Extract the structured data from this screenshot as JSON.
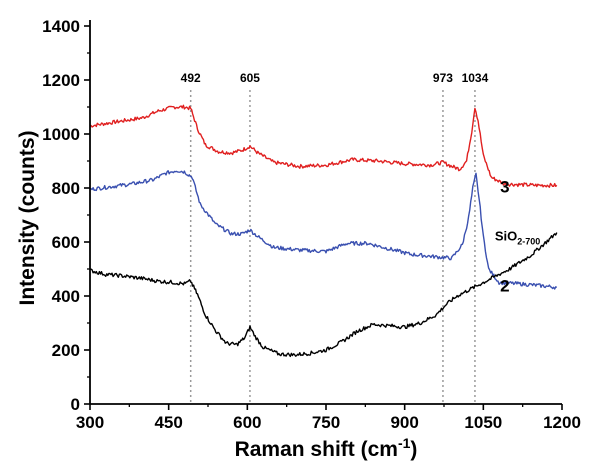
{
  "chart_data": {
    "type": "line",
    "xlabel": "Raman shift (cm",
    "xlabel_sup": "-1",
    "xlabel_suffix": ")",
    "ylabel": "Intensity (counts)",
    "xlim": [
      300,
      1200
    ],
    "ylim": [
      0,
      1400
    ],
    "x_ticks": [
      300,
      450,
      600,
      750,
      900,
      1050,
      1200
    ],
    "y_ticks": [
      0,
      200,
      400,
      600,
      800,
      1000,
      1200,
      1400
    ],
    "grid": false,
    "reference_lines": [
      {
        "x": 492,
        "label": "492"
      },
      {
        "x": 605,
        "label": "605"
      },
      {
        "x": 973,
        "label": "973"
      },
      {
        "x": 1034,
        "label": "1034"
      }
    ],
    "series": [
      {
        "name": "3",
        "color": "#e02020",
        "x": [
          300,
          350,
          400,
          430,
          460,
          480,
          492,
          505,
          520,
          545,
          570,
          590,
          605,
          620,
          650,
          700,
          750,
          800,
          850,
          900,
          950,
          973,
          990,
          1005,
          1018,
          1028,
          1034,
          1040,
          1050,
          1065,
          1090,
          1150,
          1190
        ],
        "y": [
          1030,
          1045,
          1060,
          1085,
          1100,
          1100,
          1095,
          1020,
          960,
          935,
          930,
          940,
          955,
          930,
          895,
          880,
          885,
          905,
          900,
          890,
          885,
          895,
          880,
          870,
          900,
          1010,
          1100,
          1050,
          920,
          840,
          815,
          810,
          810
        ]
      },
      {
        "name": "2",
        "color": "#3a50b0",
        "x": [
          300,
          340,
          380,
          420,
          445,
          465,
          480,
          495,
          510,
          540,
          570,
          590,
          605,
          620,
          650,
          700,
          750,
          790,
          830,
          870,
          910,
          960,
          990,
          1010,
          1022,
          1030,
          1036,
          1042,
          1050,
          1060,
          1080,
          1120,
          1150,
          1190
        ],
        "y": [
          795,
          805,
          815,
          830,
          855,
          865,
          860,
          840,
          740,
          665,
          630,
          630,
          645,
          620,
          580,
          570,
          565,
          595,
          595,
          575,
          555,
          545,
          540,
          590,
          690,
          800,
          850,
          760,
          620,
          500,
          450,
          445,
          440,
          432
        ]
      },
      {
        "name": "SiO",
        "name_sub": "2-700",
        "color": "#000000",
        "x": [
          300,
          330,
          360,
          400,
          430,
          460,
          480,
          492,
          505,
          520,
          540,
          560,
          580,
          595,
          605,
          615,
          630,
          660,
          690,
          720,
          750,
          780,
          810,
          840,
          870,
          900,
          930,
          960,
          980,
          1000,
          1030,
          1060,
          1100,
          1140,
          1170,
          1190
        ],
        "y": [
          495,
          480,
          475,
          465,
          455,
          450,
          445,
          455,
          405,
          330,
          270,
          225,
          220,
          245,
          285,
          250,
          210,
          185,
          182,
          188,
          200,
          230,
          270,
          295,
          290,
          285,
          300,
          330,
          370,
          400,
          430,
          460,
          500,
          550,
          600,
          635
        ]
      }
    ],
    "series_labels": [
      {
        "text": "3",
        "x": 1082,
        "y": 805
      },
      {
        "text": "2",
        "x": 1082,
        "y": 438
      },
      {
        "text": "SiO",
        "sub": "2-700",
        "x": 1072,
        "y": 628
      }
    ]
  }
}
